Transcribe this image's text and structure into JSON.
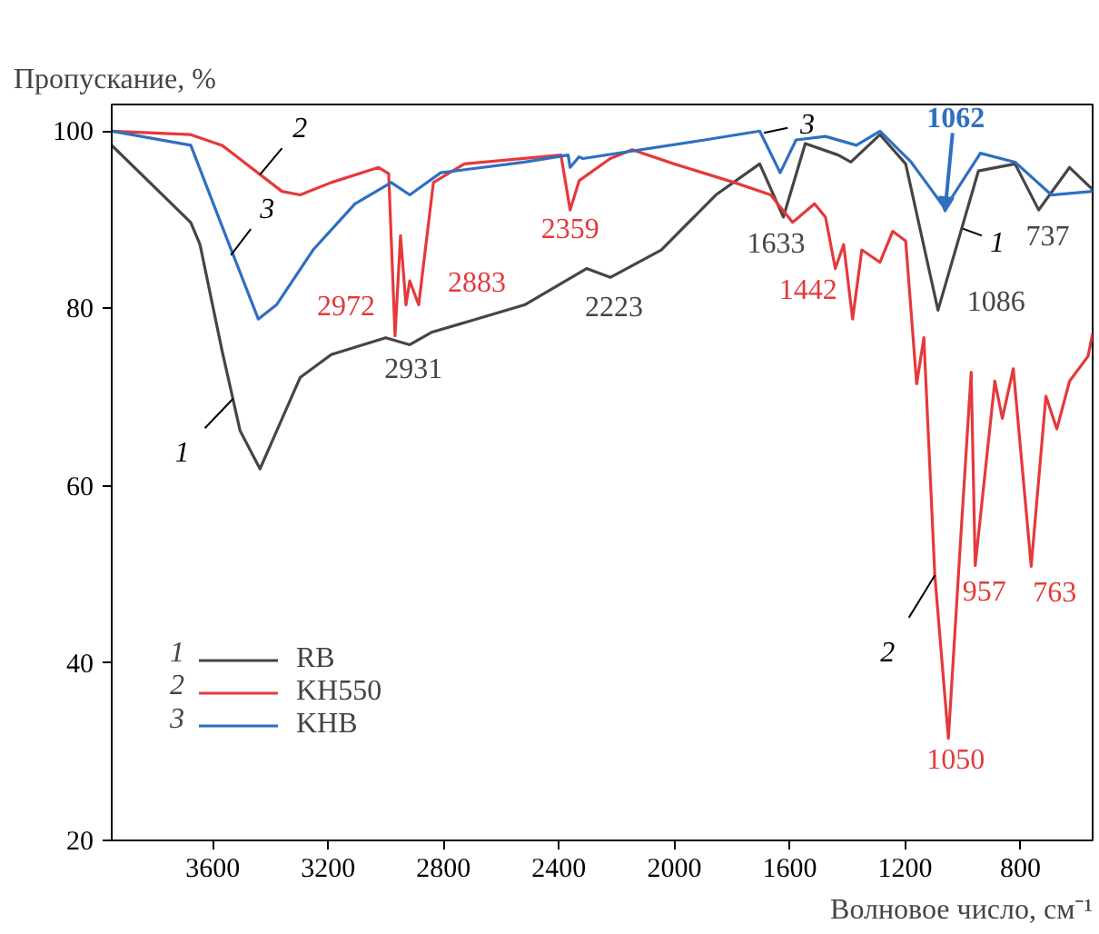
{
  "chart_data": {
    "type": "line",
    "ylabel": "Пропускание, %",
    "xlabel": "Волновое число, см⁻¹",
    "xlim": [
      3950,
      550
    ],
    "ylim": [
      20,
      103
    ],
    "xticks": [
      3600,
      3200,
      2800,
      2400,
      2000,
      1600,
      1200,
      800
    ],
    "yticks": [
      20,
      40,
      60,
      80,
      100
    ],
    "grid": false,
    "legend": "bottom left",
    "line_style": "solid",
    "marker": "none",
    "series": [
      {
        "name": "RB",
        "color": "#454545",
        "x": [
          3950,
          3676,
          3644,
          3568,
          3505,
          3436,
          3297,
          3189,
          3000,
          2917,
          2842,
          2519,
          2304,
          2222,
          2045,
          1856,
          1704,
          1622,
          1546,
          1432,
          1388,
          1287,
          1198,
          1086,
          946,
          819,
          737,
          630,
          550
        ],
        "values": [
          98.4,
          89.7,
          87.2,
          75.3,
          66.2,
          61.9,
          72.2,
          74.8,
          76.7,
          75.9,
          77.3,
          80.4,
          84.5,
          83.5,
          86.6,
          92.8,
          96.3,
          90.3,
          98.6,
          97.3,
          96.5,
          99.6,
          96.3,
          79.8,
          95.5,
          96.3,
          91.1,
          95.9,
          93.4
        ]
      },
      {
        "name": "KH550",
        "color": "#e5393b",
        "x": [
          3950,
          3676,
          3568,
          3360,
          3297,
          3189,
          3025,
          2990,
          2968,
          2949,
          2930,
          2917,
          2886,
          2835,
          2728,
          2393,
          2361,
          2330,
          2222,
          2146,
          2001,
          1792,
          1666,
          1590,
          1514,
          1476,
          1442,
          1413,
          1382,
          1350,
          1287,
          1243,
          1198,
          1160,
          1135,
          1097,
          1050,
          1009,
          971,
          957,
          889,
          863,
          825,
          763,
          712,
          674,
          630,
          566,
          550
        ],
        "values": [
          100.0,
          99.6,
          98.4,
          93.2,
          92.8,
          94.2,
          95.9,
          95.2,
          76.9,
          88.2,
          80.4,
          83.1,
          80.4,
          94.2,
          96.3,
          97.3,
          91.1,
          94.4,
          96.9,
          97.9,
          96.3,
          94.2,
          92.8,
          89.7,
          91.8,
          90.3,
          84.5,
          87.2,
          78.8,
          86.6,
          85.2,
          88.7,
          87.6,
          71.5,
          76.7,
          49.9,
          31.5,
          53.2,
          72.8,
          51.0,
          71.8,
          67.6,
          73.2,
          50.9,
          70.1,
          66.4,
          71.8,
          74.6,
          77.2
        ]
      },
      {
        "name": "KHB",
        "color": "#2e6fc1",
        "x": [
          3950,
          3676,
          3568,
          3442,
          3379,
          3252,
          3107,
          2981,
          2917,
          2810,
          2519,
          2368,
          2361,
          2330,
          2317,
          1894,
          1704,
          1666,
          1633,
          1578,
          1476,
          1369,
          1287,
          1179,
          1062,
          939,
          819,
          693,
          550
        ],
        "values": [
          100.0,
          98.4,
          89.3,
          78.8,
          80.4,
          86.6,
          91.8,
          94.2,
          92.8,
          95.3,
          96.5,
          97.3,
          95.9,
          97.1,
          96.9,
          99.0,
          100.0,
          97.5,
          95.3,
          99.0,
          99.4,
          98.4,
          100.0,
          96.5,
          91.3,
          97.5,
          96.5,
          92.8,
          93.2
        ]
      }
    ],
    "annotations": [
      "1",
      "2",
      "3",
      {
        "text": "2972",
        "x": 2968,
        "y": 76.9
      },
      {
        "text": "2883",
        "x": 2886,
        "y": 80.4
      },
      {
        "text": "2931",
        "x": 2917,
        "y": 75.9
      },
      {
        "text": "2359",
        "x": 2361,
        "y": 91.1
      },
      {
        "text": "2223",
        "x": 2222,
        "y": 83.5
      },
      {
        "text": "1633",
        "x": 1622,
        "y": 90.3
      },
      {
        "text": "1442",
        "x": 1442,
        "y": 84.5
      },
      {
        "text": "1086",
        "x": 1086,
        "y": 79.8
      },
      {
        "text": "737",
        "x": 737,
        "y": 91.1
      },
      {
        "text": "1062",
        "x": 1062,
        "y": 91.3
      },
      {
        "text": "1050",
        "x": 1050,
        "y": 31.5
      },
      {
        "text": "957",
        "x": 957,
        "y": 51.0
      },
      {
        "text": "763",
        "x": 763,
        "y": 50.9
      },
      {
        "text": "1",
        "x": 3530,
        "y": 69.8
      },
      {
        "text": "2",
        "x": 3436,
        "y": 95.1
      },
      {
        "text": "3",
        "x": 3537,
        "y": 86.0
      },
      {
        "text": "1",
        "x": 1000,
        "y": 89.0
      },
      {
        "text": "2",
        "x": 1097,
        "y": 49.9
      },
      {
        "text": "3",
        "x": 1690,
        "y": 99.8
      }
    ]
  }
}
